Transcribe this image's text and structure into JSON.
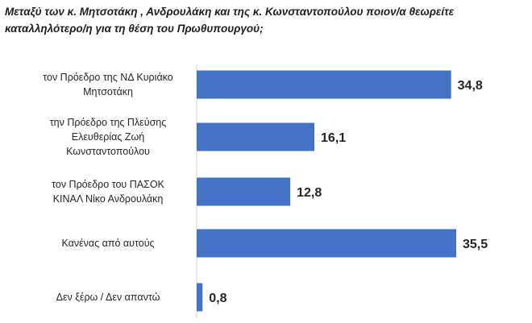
{
  "chart_data": {
    "type": "bar",
    "orientation": "horizontal",
    "title": "Μεταξύ των κ. Μητσοτάκη , Ανδρουλάκη και της κ. Κωνσταντοπούλου ποιον/α θεωρείτε\nκαταλληλότερο/η για τη θέση του Πρωθυπουργού;",
    "categories": [
      [
        "τον Πρόεδρο της ΝΔ Κυριάκο",
        "Μητσοτάκη"
      ],
      [
        "την Πρόεδρο της Πλεύσης",
        "Ελευθερίας Ζωή",
        "Κωνσταντοπούλου"
      ],
      [
        "τον Πρόεδρο του ΠΑΣΟΚ",
        "ΚΙΝΑΛ Νίκο Ανδρουλάκη"
      ],
      [
        "Κανένας από αυτούς"
      ],
      [
        "Δεν ξέρω / Δεν απαντώ"
      ]
    ],
    "values": [
      34.8,
      16.1,
      12.8,
      35.5,
      0.8
    ],
    "value_labels": [
      "34,8",
      "16,1",
      "12,8",
      "35,5",
      "0,8"
    ],
    "xlim": [
      0,
      35.5
    ],
    "bar_color": "#4472c4",
    "grid": false,
    "legend": "none"
  }
}
